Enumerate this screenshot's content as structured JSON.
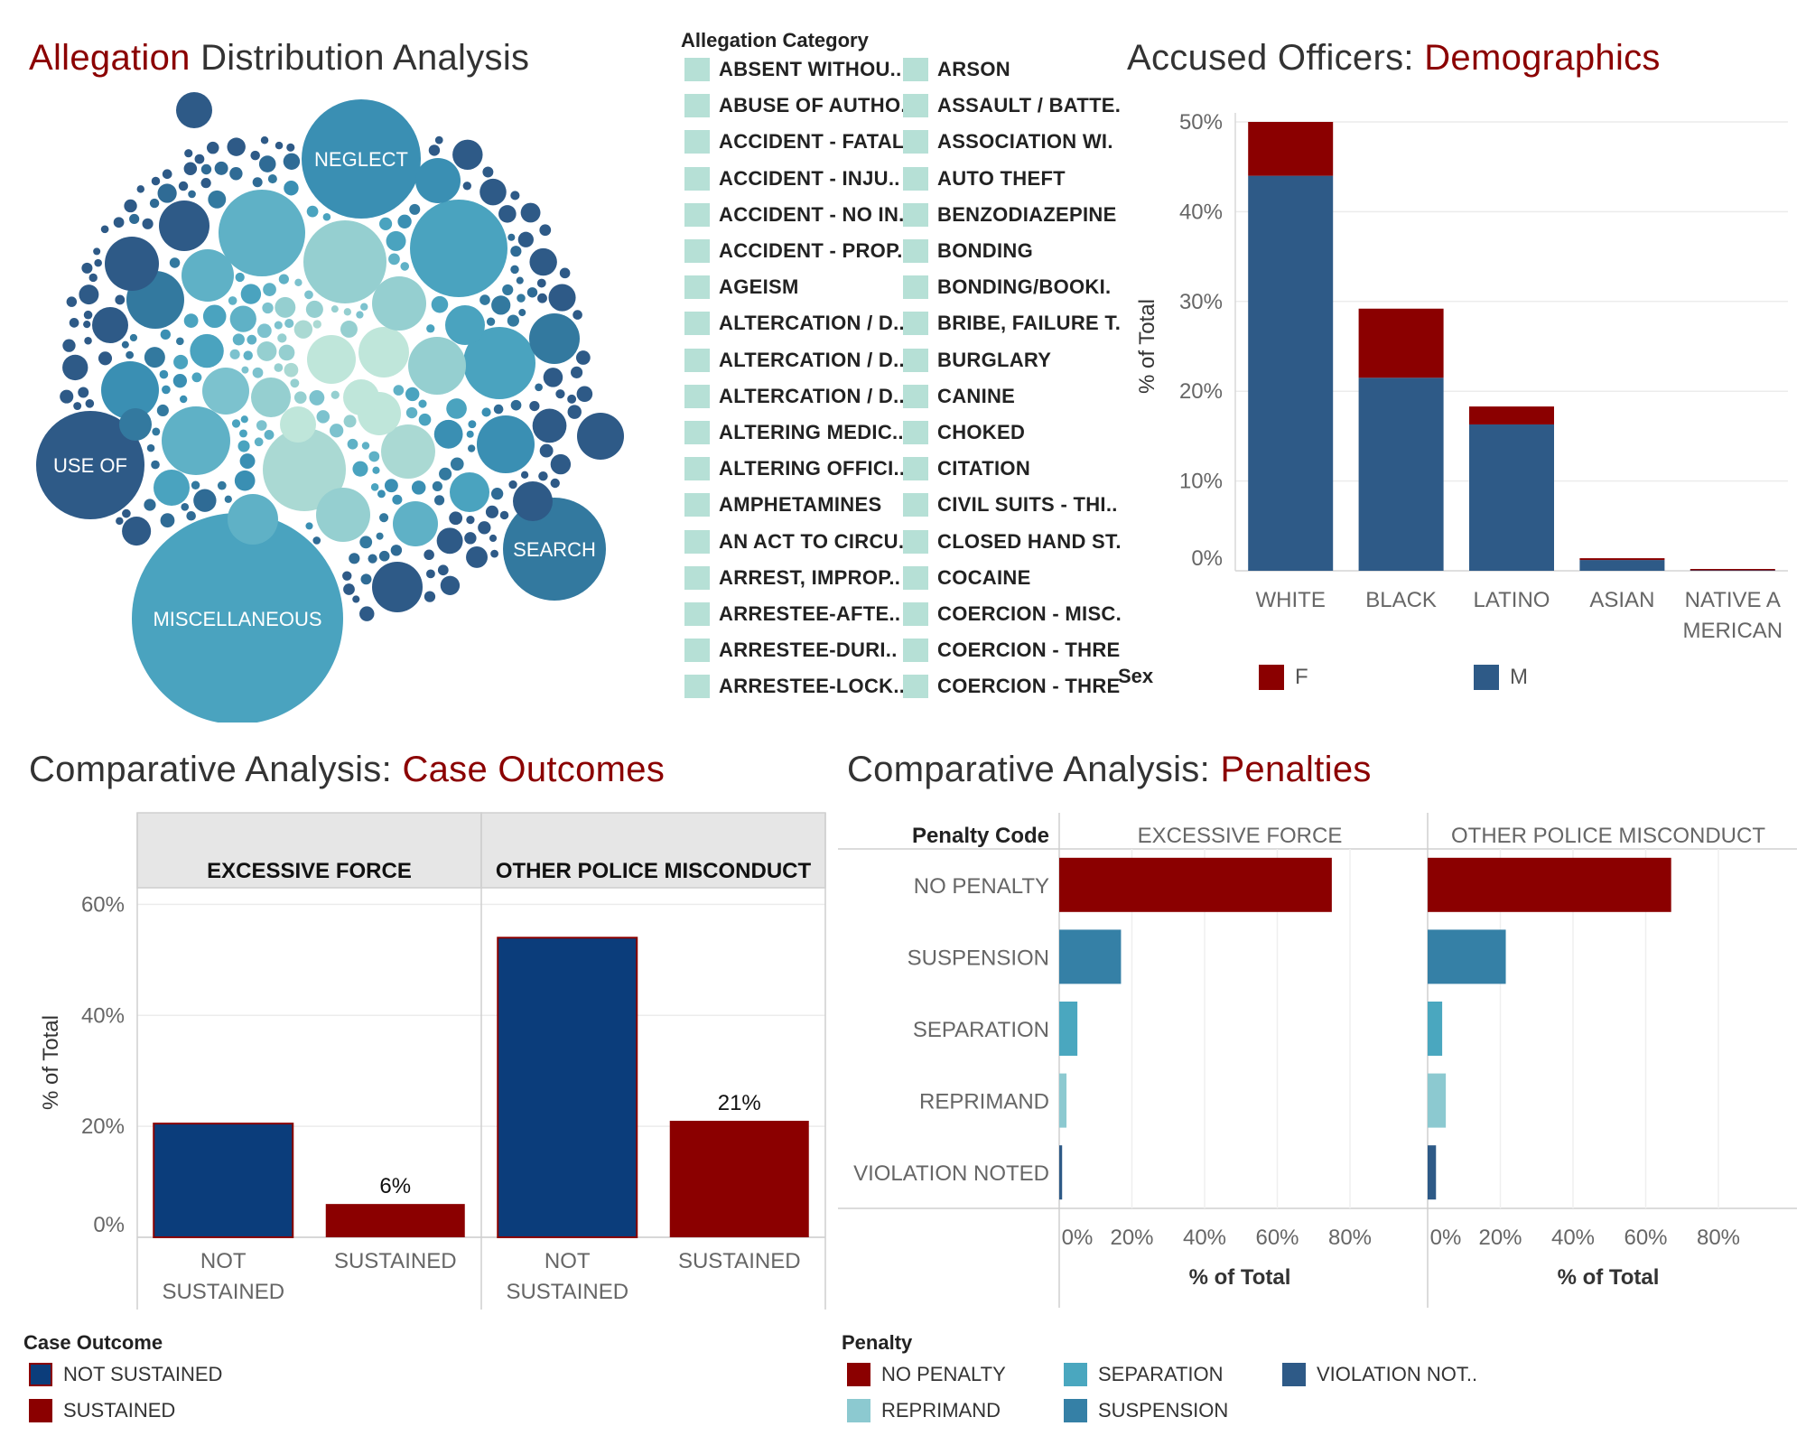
{
  "colors": {
    "accent": "#8B0000",
    "navy": "#0b3d7b",
    "blue_male": "#2e5a87",
    "teal_sep": "#4aa7bf",
    "teal_susp": "#3580a6",
    "teal_repr": "#8cc9d0",
    "violation": "#2e5a87",
    "cat_swatch": "#b6e0d6"
  },
  "bubble": {
    "title_hl": "Allegation",
    "title_rest": " Distribution Analysis",
    "labels": [
      "NEGLECT",
      "USE OF",
      "SEARCH",
      "MISCELLANEOUS"
    ]
  },
  "category_legend": {
    "title": "Allegation Category",
    "col1": [
      "ABSENT WITHOU..",
      "ABUSE OF AUTHO..",
      "ACCIDENT - FATAL",
      "ACCIDENT - INJU..",
      "ACCIDENT - NO IN..",
      "ACCIDENT - PROP..",
      "AGEISM",
      "ALTERCATION / D..",
      "ALTERCATION / D..",
      "ALTERCATION / D..",
      "ALTERING MEDIC..",
      "ALTERING OFFICI..",
      "AMPHETAMINES",
      "AN ACT TO CIRCU..",
      "ARREST, IMPROP..",
      "ARRESTEE-AFTE..",
      "ARRESTEE-DURI..",
      "ARRESTEE-LOCK.."
    ],
    "col2": [
      "ARSON",
      "ASSAULT / BATTE.",
      "ASSOCIATION WI.",
      "AUTO THEFT",
      "BENZODIAZEPINE",
      "BONDING",
      "BONDING/BOOKI.",
      "BRIBE, FAILURE T.",
      "BURGLARY",
      "CANINE",
      "CHOKED",
      "CITATION",
      "CIVIL SUITS - THI..",
      "CLOSED HAND ST.",
      "COCAINE",
      "COERCION - MISC.",
      "COERCION - THRE",
      "COERCION - THRE"
    ]
  },
  "demographics": {
    "title_prefix": "Accused Officers: ",
    "title_hl": "Demographics",
    "ylabel": "% of Total",
    "yticks": [
      "50%",
      "40%",
      "30%",
      "20%",
      "10%",
      "0%"
    ],
    "xlabels": [
      "WHITE",
      "BLACK",
      "LATINO",
      "ASIAN",
      "NATIVE A\nMERICAN"
    ],
    "legend_title": "Sex",
    "legend": [
      {
        "label": "F",
        "color": "#8B0000"
      },
      {
        "label": "M",
        "color": "#2e5a87"
      }
    ]
  },
  "outcomes": {
    "title_prefix": "Comparative Analysis: ",
    "title_hl": "Case Outcomes",
    "ylabel": "% of Total",
    "yticks": [
      "60%",
      "40%",
      "20%",
      "0%"
    ],
    "panels": [
      "EXCESSIVE FORCE",
      "OTHER POLICE MISCONDUCT"
    ],
    "xlabels": [
      "NOT\nSUSTAINED",
      "SUSTAINED"
    ],
    "legend_title": "Case Outcome",
    "legend": [
      {
        "label": "NOT SUSTAINED",
        "color": "#0b3d7b"
      },
      {
        "label": "SUSTAINED",
        "color": "#8B0000"
      }
    ]
  },
  "penalties": {
    "title_prefix": "Comparative Analysis: ",
    "title_hl": "Penalties",
    "row_header": "Penalty Code",
    "rows": [
      "NO PENALTY",
      "SUSPENSION",
      "SEPARATION",
      "REPRIMAND",
      "VIOLATION NOTED"
    ],
    "panels": [
      "EXCESSIVE FORCE",
      "OTHER POLICE MISCONDUCT"
    ],
    "xticks": [
      "0%",
      "20%",
      "40%",
      "60%",
      "80%"
    ],
    "xlabel": "% of Total",
    "legend_title": "Penalty",
    "legend": [
      {
        "label": "NO PENALTY",
        "color": "#8B0000"
      },
      {
        "label": "SEPARATION",
        "color": "#4aa7bf"
      },
      {
        "label": "VIOLATION NOT..",
        "color": "#2e5a87"
      },
      {
        "label": "REPRIMAND",
        "color": "#8cc9d0"
      },
      {
        "label": "SUSPENSION",
        "color": "#3580a6"
      }
    ]
  },
  "chart_data": [
    {
      "type": "scatter",
      "subtype": "packed-bubble",
      "title": "Allegation Distribution Analysis",
      "labeled_bubbles": [
        "NEGLECT",
        "USE OF",
        "SEARCH",
        "MISCELLANEOUS"
      ]
    },
    {
      "type": "bar",
      "stacked": true,
      "title": "Accused Officers: Demographics",
      "categories": [
        "WHITE",
        "BLACK",
        "LATINO",
        "ASIAN",
        "NATIVE A\nMERICAN"
      ],
      "series": [
        {
          "name": "M",
          "values": [
            44,
            21.5,
            16.3,
            1.2,
            0.1
          ]
        },
        {
          "name": "F",
          "values": [
            6,
            7.7,
            2,
            0.2,
            0.1
          ]
        }
      ],
      "ylabel": "% of Total",
      "ylim": [
        0,
        50
      ],
      "legend": "bottom"
    },
    {
      "type": "bar",
      "title": "Comparative Analysis: Case Outcomes",
      "panels": [
        {
          "name": "EXCESSIVE FORCE",
          "categories": [
            "NOT SUSTAINED",
            "SUSTAINED"
          ],
          "values": [
            20.5,
            6
          ],
          "labels": [
            "",
            "6%"
          ]
        },
        {
          "name": "OTHER POLICE MISCONDUCT",
          "categories": [
            "NOT SUSTAINED",
            "SUSTAINED"
          ],
          "values": [
            54,
            21
          ],
          "labels": [
            "",
            "21%"
          ]
        }
      ],
      "ylabel": "% of Total",
      "ylim": [
        0,
        60
      ]
    },
    {
      "type": "bar",
      "orientation": "horizontal",
      "title": "Comparative Analysis: Penalties",
      "categories": [
        "NO PENALTY",
        "SUSPENSION",
        "SEPARATION",
        "REPRIMAND",
        "VIOLATION NOTED"
      ],
      "panels": [
        {
          "name": "EXCESSIVE FORCE",
          "values": [
            75,
            17,
            5,
            2,
            0.8
          ]
        },
        {
          "name": "OTHER POLICE MISCONDUCT",
          "values": [
            67,
            21.5,
            4,
            5,
            2.3
          ]
        }
      ],
      "xlabel": "% of Total",
      "xlim": [
        0,
        90
      ]
    }
  ]
}
